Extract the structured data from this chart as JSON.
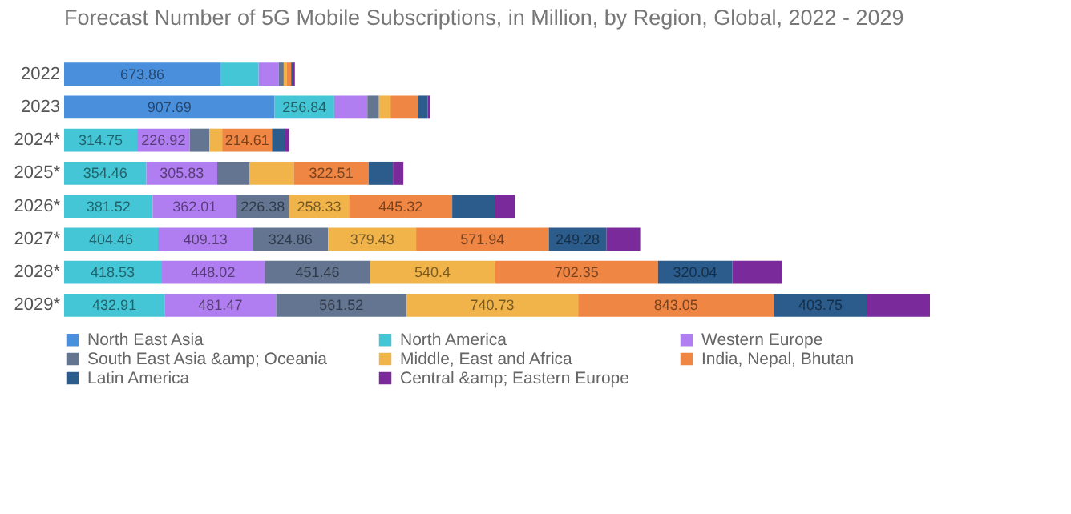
{
  "chart_data": {
    "type": "bar",
    "title": "Forecast Number of 5G Mobile Subscriptions, in Million, by Region, Global, 2022 - 2029",
    "orientation": "horizontal",
    "stacked": true,
    "legend": "bottom",
    "categories": [
      "2022",
      "2023",
      "2024*",
      "2025*",
      "2026*",
      "2027*",
      "2028*",
      "2029*"
    ],
    "series": [
      {
        "name": "North East Asia",
        "color": "#4a8fdc",
        "values": [
          673.86,
          907.69,
          null,
          null,
          null,
          null,
          null,
          null
        ],
        "value_labels": [
          "673.86",
          "907.69",
          null,
          null,
          null,
          null,
          null,
          null
        ]
      },
      {
        "name": "North America",
        "color": "#45c6d6",
        "values": [
          165,
          256.84,
          314.75,
          354.46,
          381.52,
          404.46,
          418.53,
          432.91
        ],
        "value_labels": [
          null,
          "256.84",
          "314.75",
          "354.46",
          "381.52",
          "404.46",
          "418.53",
          "432.91"
        ]
      },
      {
        "name": "Western Europe",
        "color": "#b07ef0",
        "values": [
          86,
          143,
          226.92,
          305.83,
          362.01,
          409.13,
          448.02,
          481.47
        ],
        "value_labels": [
          null,
          null,
          "226.92",
          "305.83",
          "362.01",
          "409.13",
          "448.02",
          "481.47"
        ]
      },
      {
        "name": "South East Asia &amp; Oceania",
        "color": "#637591",
        "values": [
          22,
          50,
          85,
          140,
          226.38,
          324.86,
          451.46,
          561.52
        ],
        "value_labels": [
          null,
          null,
          null,
          null,
          "226.38",
          "324.86",
          "451.46",
          "561.52"
        ]
      },
      {
        "name": "Middle, East and Africa",
        "color": "#f0b44a",
        "values": [
          14,
          50,
          55,
          190,
          258.33,
          379.43,
          540.4,
          740.73
        ],
        "value_labels": [
          null,
          null,
          null,
          null,
          "258.33",
          "379.43",
          "540.4",
          "740.73"
        ]
      },
      {
        "name": "India, Nepal, Bhutan",
        "color": "#ef8643",
        "values": [
          18,
          120,
          214.61,
          322.51,
          445.32,
          571.94,
          702.35,
          843.05
        ],
        "value_labels": [
          null,
          null,
          "214.61",
          "322.51",
          "445.32",
          "571.94",
          "702.35",
          "843.05"
        ]
      },
      {
        "name": "Latin America",
        "color": "#2b5c8c",
        "values": [
          8,
          40,
          55,
          105,
          185,
          249.28,
          320.04,
          403.75
        ],
        "value_labels": [
          null,
          null,
          null,
          null,
          null,
          "249.28",
          "320.04",
          "403.75"
        ]
      },
      {
        "name": "Central &amp; Eastern Europe",
        "color": "#7a2a9a",
        "values": [
          8,
          10,
          20,
          45,
          85,
          145,
          215,
          270
        ],
        "value_labels": [
          null,
          null,
          null,
          null,
          null,
          null,
          null,
          null
        ]
      }
    ]
  }
}
